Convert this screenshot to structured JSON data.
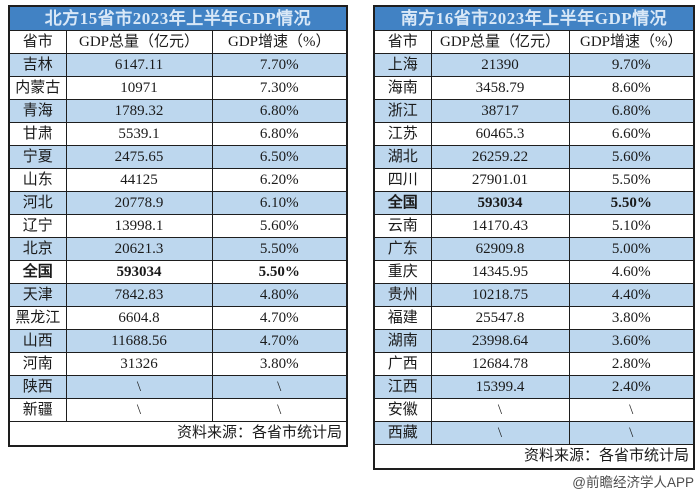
{
  "colors": {
    "title_bg": "#4182C4",
    "title_fg": "#D9E8F7",
    "band": "#BDD7EE",
    "border": "#1E1E1E",
    "text": "#1A1A1A",
    "watermark_fg": "#4D4D4D"
  },
  "watermark": "@前瞻经济学人APP",
  "chart_data": [
    {
      "type": "table",
      "title": "北方15省市2023年上半年GDP情况",
      "columns": [
        "省市",
        "GDP总量（亿元）",
        "GDP增速（%）"
      ],
      "source": "资料来源：各省市统计局",
      "rows": [
        {
          "province": "吉林",
          "gdp": "6147.11",
          "growth": "7.70%"
        },
        {
          "province": "内蒙古",
          "gdp": "10971",
          "growth": "7.30%"
        },
        {
          "province": "青海",
          "gdp": "1789.32",
          "growth": "6.80%"
        },
        {
          "province": "甘肃",
          "gdp": "5539.1",
          "growth": "6.80%"
        },
        {
          "province": "宁夏",
          "gdp": "2475.65",
          "growth": "6.50%"
        },
        {
          "province": "山东",
          "gdp": "44125",
          "growth": "6.20%"
        },
        {
          "province": "河北",
          "gdp": "20778.9",
          "growth": "6.10%"
        },
        {
          "province": "辽宁",
          "gdp": "13998.1",
          "growth": "5.60%"
        },
        {
          "province": "北京",
          "gdp": "20621.3",
          "growth": "5.50%"
        },
        {
          "province": "全国",
          "gdp": "593034",
          "growth": "5.50%",
          "emphasis": true
        },
        {
          "province": "天津",
          "gdp": "7842.83",
          "growth": "4.80%"
        },
        {
          "province": "黑龙江",
          "gdp": "6604.8",
          "growth": "4.70%"
        },
        {
          "province": "山西",
          "gdp": "11688.56",
          "growth": "4.70%"
        },
        {
          "province": "河南",
          "gdp": "31326",
          "growth": "3.80%"
        },
        {
          "province": "陕西",
          "gdp": "\\",
          "growth": "\\"
        },
        {
          "province": "新疆",
          "gdp": "\\",
          "growth": "\\"
        }
      ]
    },
    {
      "type": "table",
      "title": "南方16省市2023年上半年GDP情况",
      "columns": [
        "省市",
        "GDP总量（亿元）",
        "GDP增速（%）"
      ],
      "source": "资料来源：各省市统计局",
      "rows": [
        {
          "province": "上海",
          "gdp": "21390",
          "growth": "9.70%"
        },
        {
          "province": "海南",
          "gdp": "3458.79",
          "growth": "8.60%"
        },
        {
          "province": "浙江",
          "gdp": "38717",
          "growth": "6.80%"
        },
        {
          "province": "江苏",
          "gdp": "60465.3",
          "growth": "6.60%"
        },
        {
          "province": "湖北",
          "gdp": "26259.22",
          "growth": "5.60%"
        },
        {
          "province": "四川",
          "gdp": "27901.01",
          "growth": "5.50%"
        },
        {
          "province": "全国",
          "gdp": "593034",
          "growth": "5.50%",
          "emphasis": true
        },
        {
          "province": "云南",
          "gdp": "14170.43",
          "growth": "5.10%"
        },
        {
          "province": "广东",
          "gdp": "62909.8",
          "growth": "5.00%"
        },
        {
          "province": "重庆",
          "gdp": "14345.95",
          "growth": "4.60%"
        },
        {
          "province": "贵州",
          "gdp": "10218.75",
          "growth": "4.40%"
        },
        {
          "province": "福建",
          "gdp": "25547.8",
          "growth": "3.80%"
        },
        {
          "province": "湖南",
          "gdp": "23998.64",
          "growth": "3.60%"
        },
        {
          "province": "广西",
          "gdp": "12684.78",
          "growth": "2.80%"
        },
        {
          "province": "江西",
          "gdp": "15399.4",
          "growth": "2.40%"
        },
        {
          "province": "安徽",
          "gdp": "\\",
          "growth": "\\"
        },
        {
          "province": "西藏",
          "gdp": "\\",
          "growth": "\\"
        }
      ]
    }
  ]
}
